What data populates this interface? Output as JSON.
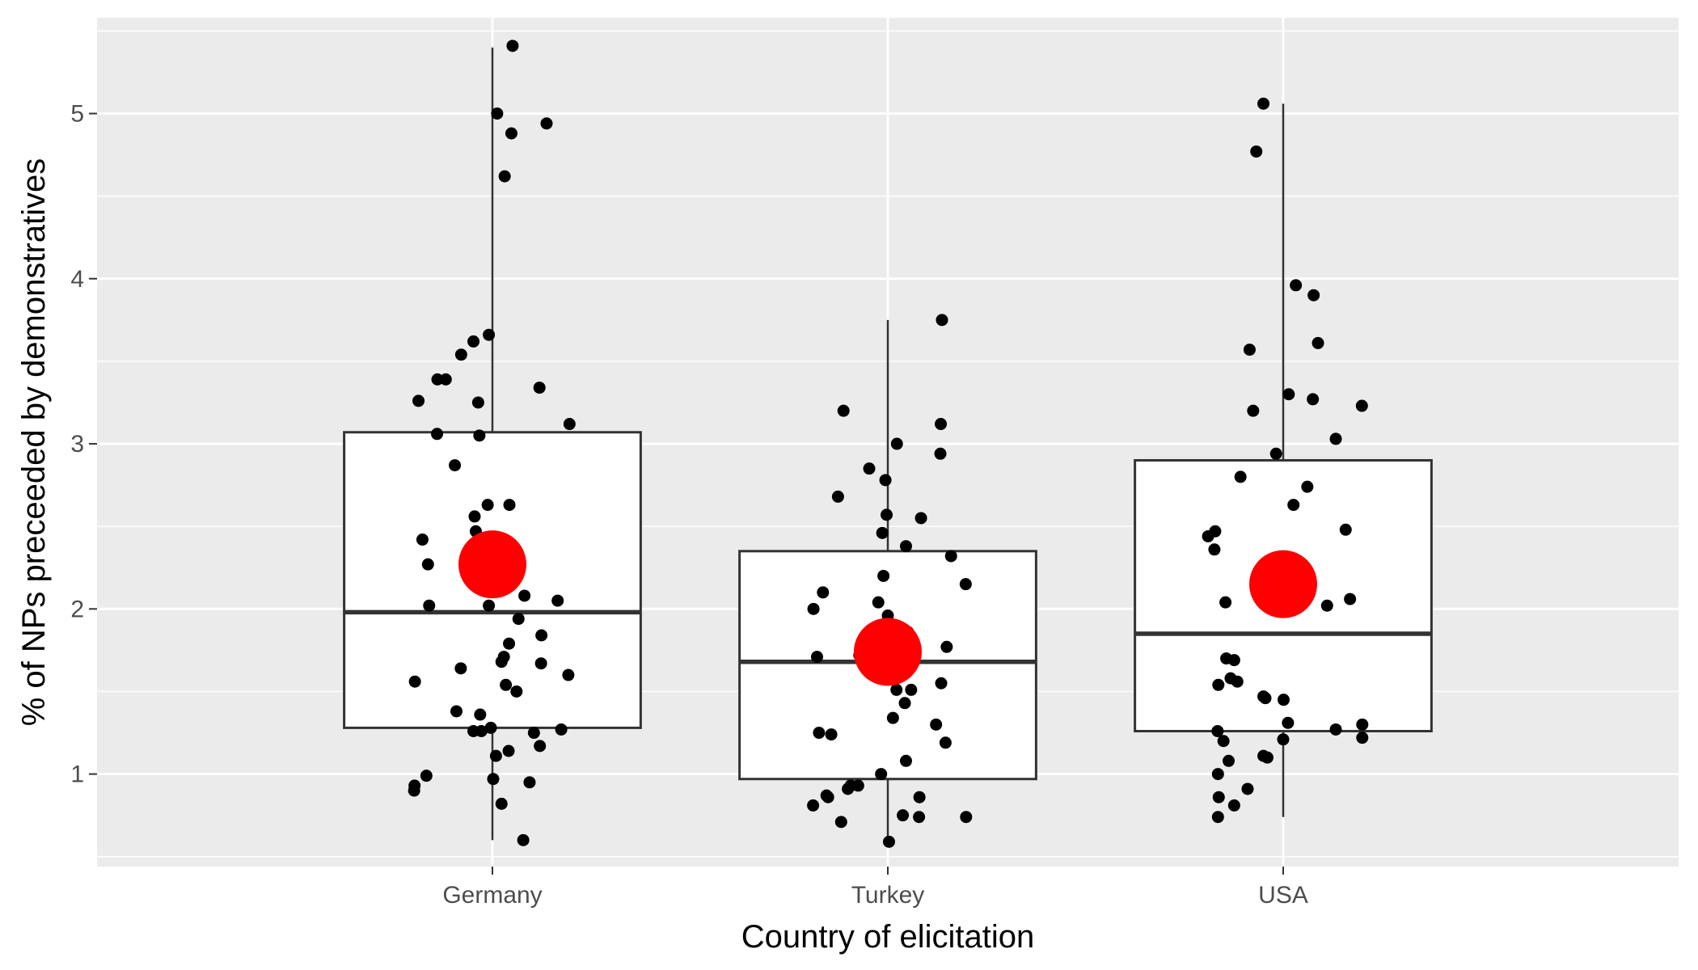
{
  "chart_data": {
    "type": "boxplot",
    "xlabel": "Country of elicitation",
    "ylabel": "% of NPs preceeded by demonstratives",
    "categories": [
      "Germany",
      "Turkey",
      "USA"
    ],
    "ylim": [
      0.44,
      5.58
    ],
    "yticks": [
      1,
      2,
      3,
      4,
      5
    ],
    "grid": true,
    "legend": "none",
    "colors": {
      "panel_background": "#ebebeb",
      "grid_line": "#ffffff",
      "box_fill": "#ffffff",
      "box_stroke": "#333333",
      "point": "#000000",
      "mean_marker": "#ff0000"
    },
    "boxes": [
      {
        "category": "Germany",
        "whisker_low": 0.6,
        "q1": 1.28,
        "median": 1.98,
        "q3": 3.07,
        "whisker_high": 5.4,
        "mean": 2.27
      },
      {
        "category": "Turkey",
        "whisker_low": 0.58,
        "q1": 0.97,
        "median": 1.68,
        "q3": 2.35,
        "whisker_high": 3.75,
        "mean": 1.74
      },
      {
        "category": "USA",
        "whisker_low": 0.74,
        "q1": 1.26,
        "median": 1.85,
        "q3": 2.9,
        "whisker_high": 5.06,
        "mean": 2.15
      }
    ],
    "points": [
      {
        "category": "Germany",
        "jitter": 0.051,
        "value": 5.41
      },
      {
        "category": "Germany",
        "jitter": 0.012,
        "value": 5.0
      },
      {
        "category": "Germany",
        "jitter": 0.137,
        "value": 4.94
      },
      {
        "category": "Germany",
        "jitter": 0.048,
        "value": 4.88
      },
      {
        "category": "Germany",
        "jitter": 0.031,
        "value": 4.62
      },
      {
        "category": "Germany",
        "jitter": -0.009,
        "value": 3.66
      },
      {
        "category": "Germany",
        "jitter": -0.048,
        "value": 3.62
      },
      {
        "category": "Germany",
        "jitter": -0.079,
        "value": 3.54
      },
      {
        "category": "Germany",
        "jitter": -0.139,
        "value": 3.39
      },
      {
        "category": "Germany",
        "jitter": -0.118,
        "value": 3.39
      },
      {
        "category": "Germany",
        "jitter": 0.119,
        "value": 3.34
      },
      {
        "category": "Germany",
        "jitter": -0.187,
        "value": 3.26
      },
      {
        "category": "Germany",
        "jitter": -0.036,
        "value": 3.25
      },
      {
        "category": "Germany",
        "jitter": 0.195,
        "value": 3.12
      },
      {
        "category": "Germany",
        "jitter": -0.14,
        "value": 3.06
      },
      {
        "category": "Germany",
        "jitter": -0.033,
        "value": 3.05
      },
      {
        "category": "Germany",
        "jitter": -0.095,
        "value": 2.87
      },
      {
        "category": "Germany",
        "jitter": -0.012,
        "value": 2.63
      },
      {
        "category": "Germany",
        "jitter": 0.043,
        "value": 2.63
      },
      {
        "category": "Germany",
        "jitter": -0.045,
        "value": 2.56
      },
      {
        "category": "Germany",
        "jitter": -0.042,
        "value": 2.47
      },
      {
        "category": "Germany",
        "jitter": -0.177,
        "value": 2.42
      },
      {
        "category": "Germany",
        "jitter": -0.163,
        "value": 2.27
      },
      {
        "category": "Germany",
        "jitter": 0.081,
        "value": 2.08
      },
      {
        "category": "Germany",
        "jitter": 0.165,
        "value": 2.05
      },
      {
        "category": "Germany",
        "jitter": -0.16,
        "value": 2.02
      },
      {
        "category": "Germany",
        "jitter": -0.009,
        "value": 2.02
      },
      {
        "category": "Germany",
        "jitter": 0.066,
        "value": 1.94
      },
      {
        "category": "Germany",
        "jitter": 0.124,
        "value": 1.84
      },
      {
        "category": "Germany",
        "jitter": 0.042,
        "value": 1.79
      },
      {
        "category": "Germany",
        "jitter": 0.029,
        "value": 1.71
      },
      {
        "category": "Germany",
        "jitter": 0.023,
        "value": 1.68
      },
      {
        "category": "Germany",
        "jitter": 0.123,
        "value": 1.67
      },
      {
        "category": "Germany",
        "jitter": -0.08,
        "value": 1.64
      },
      {
        "category": "Germany",
        "jitter": 0.192,
        "value": 1.6
      },
      {
        "category": "Germany",
        "jitter": -0.196,
        "value": 1.56
      },
      {
        "category": "Germany",
        "jitter": 0.034,
        "value": 1.54
      },
      {
        "category": "Germany",
        "jitter": 0.061,
        "value": 1.5
      },
      {
        "category": "Germany",
        "jitter": -0.091,
        "value": 1.38
      },
      {
        "category": "Germany",
        "jitter": -0.031,
        "value": 1.36
      },
      {
        "category": "Germany",
        "jitter": -0.004,
        "value": 1.28
      },
      {
        "category": "Germany",
        "jitter": 0.174,
        "value": 1.27
      },
      {
        "category": "Germany",
        "jitter": -0.048,
        "value": 1.26
      },
      {
        "category": "Germany",
        "jitter": -0.028,
        "value": 1.26
      },
      {
        "category": "Germany",
        "jitter": 0.105,
        "value": 1.25
      },
      {
        "category": "Germany",
        "jitter": 0.12,
        "value": 1.17
      },
      {
        "category": "Germany",
        "jitter": 0.041,
        "value": 1.14
      },
      {
        "category": "Germany",
        "jitter": 0.009,
        "value": 1.11
      },
      {
        "category": "Germany",
        "jitter": -0.167,
        "value": 0.99
      },
      {
        "category": "Germany",
        "jitter": 0.002,
        "value": 0.97
      },
      {
        "category": "Germany",
        "jitter": 0.094,
        "value": 0.95
      },
      {
        "category": "Germany",
        "jitter": -0.197,
        "value": 0.93
      },
      {
        "category": "Germany",
        "jitter": -0.198,
        "value": 0.9
      },
      {
        "category": "Germany",
        "jitter": 0.023,
        "value": 0.82
      },
      {
        "category": "Germany",
        "jitter": 0.078,
        "value": 0.6
      },
      {
        "category": "Turkey",
        "jitter": 0.137,
        "value": 3.75
      },
      {
        "category": "Turkey",
        "jitter": -0.112,
        "value": 3.2
      },
      {
        "category": "Turkey",
        "jitter": 0.134,
        "value": 3.12
      },
      {
        "category": "Turkey",
        "jitter": 0.023,
        "value": 3.0
      },
      {
        "category": "Turkey",
        "jitter": 0.133,
        "value": 2.94
      },
      {
        "category": "Turkey",
        "jitter": -0.047,
        "value": 2.85
      },
      {
        "category": "Turkey",
        "jitter": -0.006,
        "value": 2.78
      },
      {
        "category": "Turkey",
        "jitter": -0.126,
        "value": 2.68
      },
      {
        "category": "Turkey",
        "jitter": -0.003,
        "value": 2.57
      },
      {
        "category": "Turkey",
        "jitter": 0.084,
        "value": 2.55
      },
      {
        "category": "Turkey",
        "jitter": -0.014,
        "value": 2.46
      },
      {
        "category": "Turkey",
        "jitter": 0.046,
        "value": 2.38
      },
      {
        "category": "Turkey",
        "jitter": 0.16,
        "value": 2.32
      },
      {
        "category": "Turkey",
        "jitter": -0.011,
        "value": 2.2
      },
      {
        "category": "Turkey",
        "jitter": 0.197,
        "value": 2.15
      },
      {
        "category": "Turkey",
        "jitter": -0.164,
        "value": 2.1
      },
      {
        "category": "Turkey",
        "jitter": -0.024,
        "value": 2.04
      },
      {
        "category": "Turkey",
        "jitter": -0.188,
        "value": 2.0
      },
      {
        "category": "Turkey",
        "jitter": 0.0,
        "value": 1.96
      },
      {
        "category": "Turkey",
        "jitter": 0.051,
        "value": 1.86
      },
      {
        "category": "Turkey",
        "jitter": 0.149,
        "value": 1.77
      },
      {
        "category": "Turkey",
        "jitter": -0.072,
        "value": 1.72
      },
      {
        "category": "Turkey",
        "jitter": -0.179,
        "value": 1.71
      },
      {
        "category": "Turkey",
        "jitter": 0.135,
        "value": 1.55
      },
      {
        "category": "Turkey",
        "jitter": 0.059,
        "value": 1.51
      },
      {
        "category": "Turkey",
        "jitter": 0.022,
        "value": 1.51
      },
      {
        "category": "Turkey",
        "jitter": 0.043,
        "value": 1.43
      },
      {
        "category": "Turkey",
        "jitter": 0.013,
        "value": 1.34
      },
      {
        "category": "Turkey",
        "jitter": 0.122,
        "value": 1.3
      },
      {
        "category": "Turkey",
        "jitter": -0.174,
        "value": 1.25
      },
      {
        "category": "Turkey",
        "jitter": -0.143,
        "value": 1.24
      },
      {
        "category": "Turkey",
        "jitter": 0.146,
        "value": 1.19
      },
      {
        "category": "Turkey",
        "jitter": 0.046,
        "value": 1.08
      },
      {
        "category": "Turkey",
        "jitter": -0.017,
        "value": 1.0
      },
      {
        "category": "Turkey",
        "jitter": -0.094,
        "value": 0.93
      },
      {
        "category": "Turkey",
        "jitter": -0.075,
        "value": 0.93
      },
      {
        "category": "Turkey",
        "jitter": -0.101,
        "value": 0.91
      },
      {
        "category": "Turkey",
        "jitter": -0.155,
        "value": 0.87
      },
      {
        "category": "Turkey",
        "jitter": -0.151,
        "value": 0.86
      },
      {
        "category": "Turkey",
        "jitter": 0.08,
        "value": 0.86
      },
      {
        "category": "Turkey",
        "jitter": -0.189,
        "value": 0.81
      },
      {
        "category": "Turkey",
        "jitter": 0.038,
        "value": 0.75
      },
      {
        "category": "Turkey",
        "jitter": 0.079,
        "value": 0.74
      },
      {
        "category": "Turkey",
        "jitter": 0.198,
        "value": 0.74
      },
      {
        "category": "Turkey",
        "jitter": -0.118,
        "value": 0.71
      },
      {
        "category": "Turkey",
        "jitter": 0.003,
        "value": 0.59
      },
      {
        "category": "USA",
        "jitter": -0.05,
        "value": 5.06
      },
      {
        "category": "USA",
        "jitter": -0.068,
        "value": 4.77
      },
      {
        "category": "USA",
        "jitter": 0.032,
        "value": 3.96
      },
      {
        "category": "USA",
        "jitter": 0.077,
        "value": 3.9
      },
      {
        "category": "USA",
        "jitter": 0.088,
        "value": 3.61
      },
      {
        "category": "USA",
        "jitter": -0.085,
        "value": 3.57
      },
      {
        "category": "USA",
        "jitter": 0.014,
        "value": 3.3
      },
      {
        "category": "USA",
        "jitter": 0.075,
        "value": 3.27
      },
      {
        "category": "USA",
        "jitter": 0.199,
        "value": 3.23
      },
      {
        "category": "USA",
        "jitter": -0.076,
        "value": 3.2
      },
      {
        "category": "USA",
        "jitter": 0.133,
        "value": 3.03
      },
      {
        "category": "USA",
        "jitter": -0.018,
        "value": 2.94
      },
      {
        "category": "USA",
        "jitter": -0.108,
        "value": 2.8
      },
      {
        "category": "USA",
        "jitter": 0.061,
        "value": 2.74
      },
      {
        "category": "USA",
        "jitter": 0.026,
        "value": 2.63
      },
      {
        "category": "USA",
        "jitter": 0.158,
        "value": 2.48
      },
      {
        "category": "USA",
        "jitter": -0.172,
        "value": 2.47
      },
      {
        "category": "USA",
        "jitter": -0.19,
        "value": 2.44
      },
      {
        "category": "USA",
        "jitter": -0.174,
        "value": 2.36
      },
      {
        "category": "USA",
        "jitter": 0.169,
        "value": 2.06
      },
      {
        "category": "USA",
        "jitter": -0.146,
        "value": 2.04
      },
      {
        "category": "USA",
        "jitter": 0.111,
        "value": 2.02
      },
      {
        "category": "USA",
        "jitter": -0.144,
        "value": 1.7
      },
      {
        "category": "USA",
        "jitter": -0.124,
        "value": 1.69
      },
      {
        "category": "USA",
        "jitter": -0.133,
        "value": 1.58
      },
      {
        "category": "USA",
        "jitter": -0.116,
        "value": 1.56
      },
      {
        "category": "USA",
        "jitter": -0.164,
        "value": 1.54
      },
      {
        "category": "USA",
        "jitter": -0.05,
        "value": 1.47
      },
      {
        "category": "USA",
        "jitter": -0.045,
        "value": 1.46
      },
      {
        "category": "USA",
        "jitter": 0.001,
        "value": 1.45
      },
      {
        "category": "USA",
        "jitter": 0.012,
        "value": 1.31
      },
      {
        "category": "USA",
        "jitter": 0.2,
        "value": 1.3
      },
      {
        "category": "USA",
        "jitter": 0.133,
        "value": 1.27
      },
      {
        "category": "USA",
        "jitter": -0.166,
        "value": 1.26
      },
      {
        "category": "USA",
        "jitter": 0.2,
        "value": 1.22
      },
      {
        "category": "USA",
        "jitter": 0.0,
        "value": 1.21
      },
      {
        "category": "USA",
        "jitter": -0.151,
        "value": 1.2
      },
      {
        "category": "USA",
        "jitter": -0.05,
        "value": 1.11
      },
      {
        "category": "USA",
        "jitter": -0.04,
        "value": 1.1
      },
      {
        "category": "USA",
        "jitter": -0.138,
        "value": 1.08
      },
      {
        "category": "USA",
        "jitter": -0.165,
        "value": 1.0
      },
      {
        "category": "USA",
        "jitter": -0.09,
        "value": 0.91
      },
      {
        "category": "USA",
        "jitter": -0.163,
        "value": 0.86
      },
      {
        "category": "USA",
        "jitter": -0.124,
        "value": 0.81
      },
      {
        "category": "USA",
        "jitter": -0.165,
        "value": 0.74
      }
    ]
  }
}
